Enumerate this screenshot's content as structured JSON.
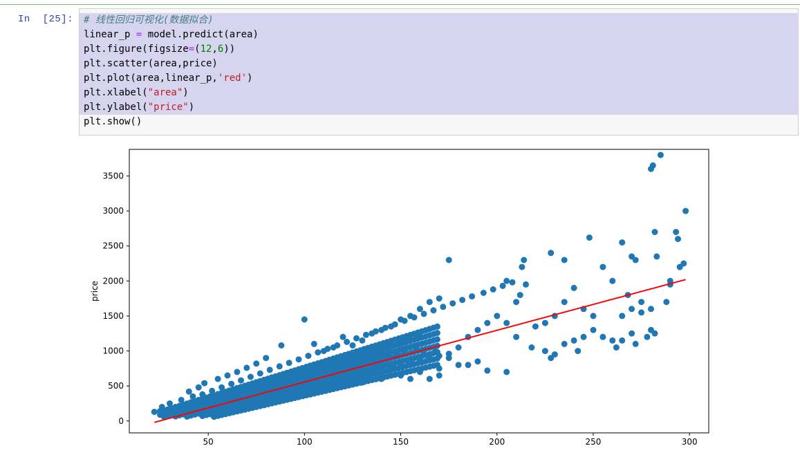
{
  "cell": {
    "prompt": "In  [25]:",
    "code_lines": [
      [
        {
          "t": "# 线性回归可视化(数据拟合)",
          "c": "comment"
        }
      ],
      [
        {
          "t": "linear_p "
        },
        {
          "t": "=",
          "c": "op"
        },
        {
          "t": " model.predict(area)"
        }
      ],
      [
        {
          "t": "plt.figure(figsize"
        },
        {
          "t": "=",
          "c": "op"
        },
        {
          "t": "("
        },
        {
          "t": "12",
          "c": "num"
        },
        {
          "t": ","
        },
        {
          "t": "6",
          "c": "num"
        },
        {
          "t": "))"
        }
      ],
      [
        {
          "t": "plt.scatter(area,price)"
        }
      ],
      [
        {
          "t": "plt.plot(area,linear_p,"
        },
        {
          "t": "'red'",
          "c": "str"
        },
        {
          "t": ")"
        }
      ],
      [
        {
          "t": "plt.xlabel("
        },
        {
          "t": "\"area\"",
          "c": "str"
        },
        {
          "t": ")"
        }
      ],
      [
        {
          "t": "plt.ylabel("
        },
        {
          "t": "\"price\"",
          "c": "str"
        },
        {
          "t": ")"
        }
      ],
      [
        {
          "t": "plt.show()"
        }
      ]
    ]
  },
  "chart_data": {
    "type": "scatter",
    "xlabel": "",
    "ylabel": "price",
    "xlim": [
      9,
      310
    ],
    "ylim": [
      -170,
      3880
    ],
    "xticks": [
      50,
      100,
      150,
      200,
      250,
      300
    ],
    "yticks": [
      0,
      500,
      1000,
      1500,
      2000,
      2500,
      3000,
      3500
    ],
    "point_color": "#1f77b4",
    "line_color": "#ff0000",
    "fit_line": {
      "x": [
        22,
        298
      ],
      "y": [
        -20,
        2020
      ]
    },
    "series": [
      {
        "kind": "scatter",
        "points": [
          [
            22,
            130
          ],
          [
            25,
            140
          ],
          [
            27,
            150
          ],
          [
            30,
            170
          ],
          [
            33,
            200
          ],
          [
            35,
            210
          ],
          [
            38,
            230
          ],
          [
            40,
            250
          ],
          [
            42,
            260
          ],
          [
            45,
            280
          ],
          [
            48,
            300
          ],
          [
            50,
            320
          ],
          [
            52,
            340
          ],
          [
            55,
            360
          ],
          [
            58,
            380
          ],
          [
            60,
            400
          ],
          [
            62,
            420
          ],
          [
            65,
            440
          ],
          [
            68,
            460
          ],
          [
            70,
            480
          ],
          [
            72,
            500
          ],
          [
            75,
            520
          ],
          [
            78,
            540
          ],
          [
            80,
            560
          ],
          [
            82,
            580
          ],
          [
            85,
            600
          ],
          [
            88,
            620
          ],
          [
            90,
            640
          ],
          [
            92,
            660
          ],
          [
            95,
            680
          ],
          [
            98,
            700
          ],
          [
            100,
            720
          ],
          [
            102,
            740
          ],
          [
            105,
            760
          ],
          [
            108,
            780
          ],
          [
            110,
            800
          ],
          [
            112,
            820
          ],
          [
            115,
            840
          ],
          [
            118,
            860
          ],
          [
            120,
            880
          ],
          [
            122,
            900
          ],
          [
            125,
            920
          ],
          [
            128,
            940
          ],
          [
            130,
            960
          ],
          [
            132,
            980
          ],
          [
            135,
            1000
          ],
          [
            138,
            1020
          ],
          [
            140,
            1040
          ],
          [
            142,
            1060
          ],
          [
            145,
            1080
          ],
          [
            148,
            1100
          ],
          [
            150,
            1120
          ],
          [
            152,
            1140
          ],
          [
            155,
            1160
          ],
          [
            158,
            1180
          ],
          [
            160,
            1200
          ],
          [
            35,
            100
          ],
          [
            40,
            150
          ],
          [
            45,
            200
          ],
          [
            50,
            220
          ],
          [
            55,
            250
          ],
          [
            60,
            270
          ],
          [
            65,
            300
          ],
          [
            70,
            330
          ],
          [
            75,
            360
          ],
          [
            80,
            390
          ],
          [
            85,
            420
          ],
          [
            90,
            450
          ],
          [
            95,
            480
          ],
          [
            100,
            510
          ],
          [
            105,
            540
          ],
          [
            110,
            570
          ],
          [
            115,
            600
          ],
          [
            120,
            630
          ],
          [
            125,
            660
          ],
          [
            130,
            690
          ],
          [
            135,
            720
          ],
          [
            140,
            750
          ],
          [
            145,
            780
          ],
          [
            150,
            810
          ],
          [
            155,
            840
          ],
          [
            160,
            870
          ],
          [
            165,
            900
          ],
          [
            170,
            930
          ],
          [
            175,
            960
          ],
          [
            40,
            420
          ],
          [
            45,
            480
          ],
          [
            48,
            540
          ],
          [
            55,
            600
          ],
          [
            60,
            650
          ],
          [
            65,
            700
          ],
          [
            70,
            760
          ],
          [
            75,
            820
          ],
          [
            80,
            900
          ],
          [
            88,
            1080
          ],
          [
            100,
            1450
          ],
          [
            105,
            1100
          ],
          [
            110,
            1000
          ],
          [
            115,
            1050
          ],
          [
            120,
            1200
          ],
          [
            125,
            1080
          ],
          [
            130,
            1150
          ],
          [
            135,
            1250
          ],
          [
            140,
            1300
          ],
          [
            145,
            1350
          ],
          [
            150,
            1450
          ],
          [
            155,
            1500
          ],
          [
            160,
            1600
          ],
          [
            165,
            1700
          ],
          [
            170,
            1750
          ],
          [
            175,
            2300
          ],
          [
            60,
            200
          ],
          [
            70,
            250
          ],
          [
            80,
            300
          ],
          [
            90,
            350
          ],
          [
            100,
            400
          ],
          [
            110,
            450
          ],
          [
            120,
            500
          ],
          [
            130,
            550
          ],
          [
            140,
            600
          ],
          [
            150,
            650
          ],
          [
            160,
            700
          ],
          [
            170,
            750
          ],
          [
            180,
            800
          ],
          [
            190,
            850
          ],
          [
            155,
            600
          ],
          [
            165,
            600
          ],
          [
            170,
            650
          ],
          [
            180,
            1050
          ],
          [
            185,
            1200
          ],
          [
            190,
            1300
          ],
          [
            195,
            1400
          ],
          [
            200,
            1500
          ],
          [
            205,
            1400
          ],
          [
            210,
            1700
          ],
          [
            212,
            1800
          ],
          [
            215,
            1950
          ],
          [
            214,
            2300
          ],
          [
            213,
            2200
          ],
          [
            205,
            2000
          ],
          [
            210,
            1200
          ],
          [
            220,
            1350
          ],
          [
            225,
            1400
          ],
          [
            230,
            1500
          ],
          [
            235,
            1700
          ],
          [
            240,
            1900
          ],
          [
            245,
            1600
          ],
          [
            250,
            1500
          ],
          [
            255,
            2200
          ],
          [
            248,
            2620
          ],
          [
            235,
            2300
          ],
          [
            228,
            2400
          ],
          [
            260,
            2000
          ],
          [
            265,
            2550
          ],
          [
            270,
            2350
          ],
          [
            272,
            2300
          ],
          [
            268,
            1800
          ],
          [
            275,
            1700
          ],
          [
            280,
            1600
          ],
          [
            282,
            2700
          ],
          [
            285,
            3800
          ],
          [
            281,
            3650
          ],
          [
            280,
            3600
          ],
          [
            283,
            2350
          ],
          [
            288,
            1700
          ],
          [
            290,
            2000
          ],
          [
            293,
            2700
          ],
          [
            294,
            2600
          ],
          [
            297,
            2250
          ],
          [
            298,
            3000
          ],
          [
            290,
            1950
          ],
          [
            295,
            2200
          ],
          [
            225,
            1000
          ],
          [
            230,
            950
          ],
          [
            235,
            1100
          ],
          [
            240,
            1150
          ],
          [
            245,
            1200
          ],
          [
            250,
            1300
          ],
          [
            255,
            1200
          ],
          [
            260,
            1150
          ],
          [
            262,
            1050
          ],
          [
            265,
            1150
          ],
          [
            270,
            1250
          ],
          [
            272,
            1100
          ],
          [
            278,
            1200
          ],
          [
            280,
            1300
          ],
          [
            282,
            1250
          ],
          [
            270,
            1600
          ],
          [
            265,
            1500
          ],
          [
            275,
            1550
          ],
          [
            242,
            1000
          ],
          [
            228,
            900
          ],
          [
            218,
            1050
          ],
          [
            205,
            700
          ],
          [
            195,
            720
          ],
          [
            185,
            800
          ],
          [
            175,
            900
          ],
          [
            168,
            1000
          ],
          [
            162,
            950
          ],
          [
            158,
            1050
          ],
          [
            152,
            1000
          ],
          [
            148,
            950
          ],
          [
            143,
            920
          ],
          [
            138,
            880
          ],
          [
            133,
            840
          ],
          [
            128,
            800
          ],
          [
            123,
            760
          ],
          [
            118,
            720
          ],
          [
            113,
            680
          ],
          [
            108,
            640
          ],
          [
            103,
            600
          ],
          [
            98,
            560
          ],
          [
            93,
            520
          ],
          [
            88,
            480
          ],
          [
            83,
            440
          ],
          [
            78,
            400
          ],
          [
            73,
            360
          ],
          [
            68,
            320
          ],
          [
            63,
            290
          ],
          [
            58,
            260
          ],
          [
            53,
            230
          ],
          [
            48,
            200
          ],
          [
            43,
            170
          ],
          [
            38,
            140
          ],
          [
            33,
            120
          ],
          [
            28,
            110
          ],
          [
            26,
            200
          ],
          [
            30,
            250
          ],
          [
            36,
            300
          ],
          [
            42,
            350
          ],
          [
            47,
            380
          ],
          [
            52,
            430
          ],
          [
            57,
            480
          ],
          [
            62,
            530
          ],
          [
            67,
            580
          ],
          [
            72,
            630
          ],
          [
            77,
            680
          ],
          [
            82,
            730
          ],
          [
            87,
            780
          ],
          [
            92,
            830
          ],
          [
            97,
            880
          ],
          [
            102,
            930
          ],
          [
            107,
            980
          ],
          [
            112,
            1030
          ],
          [
            117,
            1080
          ],
          [
            122,
            1130
          ],
          [
            127,
            1180
          ],
          [
            132,
            1230
          ],
          [
            137,
            1280
          ],
          [
            142,
            1330
          ],
          [
            147,
            1380
          ],
          [
            152,
            1430
          ],
          [
            157,
            1480
          ],
          [
            162,
            1530
          ],
          [
            167,
            1580
          ],
          [
            172,
            1630
          ],
          [
            177,
            1680
          ],
          [
            182,
            1730
          ],
          [
            187,
            1780
          ],
          [
            193,
            1830
          ],
          [
            198,
            1880
          ],
          [
            203,
            1930
          ],
          [
            208,
            1980
          ]
        ]
      }
    ]
  }
}
